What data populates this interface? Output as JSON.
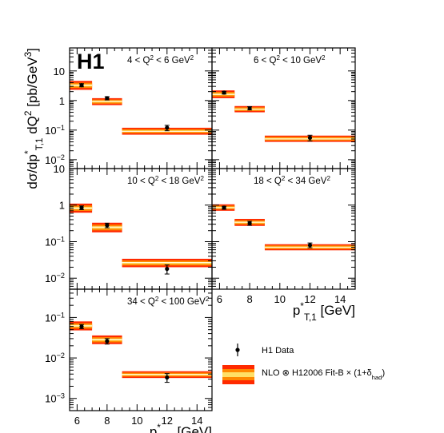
{
  "chart_data": {
    "type": "scatter",
    "logo": "H1",
    "ylabel": "dσ/dp*T,1 dQ² [pb/GeV³]",
    "xlabel": "p*T,1 [GeV]",
    "x_ticks": [
      "6",
      "8",
      "10",
      "12",
      "14"
    ],
    "xlim": [
      5.5,
      15
    ],
    "yscale": "log",
    "bins": [
      [
        5.5,
        7
      ],
      [
        7,
        9
      ],
      [
        9,
        15
      ]
    ],
    "legend": {
      "position": "bottom-right",
      "data_label": "H1 Data",
      "nlo_label": "NLO ⊗ H12006 Fit-B × (1+δ_had)"
    },
    "panels": [
      {
        "q2_label": "4 < Q² < 6 GeV²",
        "ylim": [
          0.005,
          60
        ],
        "y_ticks": [
          "10",
          "1",
          "10⁻¹",
          "10⁻²"
        ],
        "data": [
          {
            "x": 6.3,
            "y": 3.3,
            "err": 0.4
          },
          {
            "x": 8.0,
            "y": 1.2,
            "err": 0.15
          },
          {
            "x": 12.0,
            "y": 0.12,
            "err": 0.025
          }
        ],
        "nlo": [
          {
            "low": 2.3,
            "mid": 3.3,
            "high": 4.6
          },
          {
            "low": 0.7,
            "mid": 0.95,
            "high": 1.2
          },
          {
            "low": 0.07,
            "mid": 0.09,
            "high": 0.12
          }
        ]
      },
      {
        "q2_label": "6 < Q² < 10 GeV²",
        "ylim": [
          0.005,
          60
        ],
        "y_ticks": [],
        "data": [
          {
            "x": 6.3,
            "y": 1.85,
            "err": 0.2
          },
          {
            "x": 8.0,
            "y": 0.55,
            "err": 0.07
          },
          {
            "x": 12.0,
            "y": 0.055,
            "err": 0.012
          }
        ],
        "nlo": [
          {
            "low": 1.2,
            "mid": 1.6,
            "high": 2.2
          },
          {
            "low": 0.4,
            "mid": 0.5,
            "high": 0.65
          },
          {
            "low": 0.04,
            "mid": 0.05,
            "high": 0.065
          }
        ]
      },
      {
        "q2_label": "10 < Q² < 18 GeV²",
        "ylim": [
          0.005,
          10
        ],
        "y_ticks": [
          "10",
          "1",
          "10⁻¹",
          "10⁻²"
        ],
        "data": [
          {
            "x": 6.3,
            "y": 0.85,
            "err": 0.1
          },
          {
            "x": 8.0,
            "y": 0.28,
            "err": 0.04
          },
          {
            "x": 12.0,
            "y": 0.018,
            "err": 0.005
          }
        ],
        "nlo": [
          {
            "low": 0.62,
            "mid": 0.82,
            "high": 1.1
          },
          {
            "low": 0.18,
            "mid": 0.25,
            "high": 0.33
          },
          {
            "low": 0.02,
            "mid": 0.027,
            "high": 0.034
          }
        ]
      },
      {
        "q2_label": "18 < Q² < 34 GeV²",
        "ylim": [
          0.005,
          10
        ],
        "y_ticks": [],
        "data": [
          {
            "x": 6.3,
            "y": 0.85,
            "err": 0.08
          },
          {
            "x": 8.0,
            "y": 0.32,
            "err": 0.04
          },
          {
            "x": 12.0,
            "y": 0.08,
            "err": 0.012
          }
        ],
        "nlo": [
          {
            "low": 0.7,
            "mid": 0.85,
            "high": 1.05
          },
          {
            "low": 0.27,
            "mid": 0.34,
            "high": 0.42
          },
          {
            "low": 0.058,
            "mid": 0.07,
            "high": 0.085
          }
        ]
      },
      {
        "q2_label": "34 < Q² < 100 GeV²",
        "ylim": [
          0.0005,
          0.5
        ],
        "y_ticks": [
          "10⁻¹",
          "10⁻²",
          "10⁻³"
        ],
        "data": [
          {
            "x": 6.3,
            "y": 0.06,
            "err": 0.007
          },
          {
            "x": 8.0,
            "y": 0.026,
            "err": 0.004
          },
          {
            "x": 12.0,
            "y": 0.0033,
            "err": 0.0008
          }
        ],
        "nlo": [
          {
            "low": 0.048,
            "mid": 0.062,
            "high": 0.08
          },
          {
            "low": 0.022,
            "mid": 0.029,
            "high": 0.036
          },
          {
            "low": 0.0032,
            "mid": 0.0039,
            "high": 0.0047
          }
        ]
      }
    ]
  }
}
